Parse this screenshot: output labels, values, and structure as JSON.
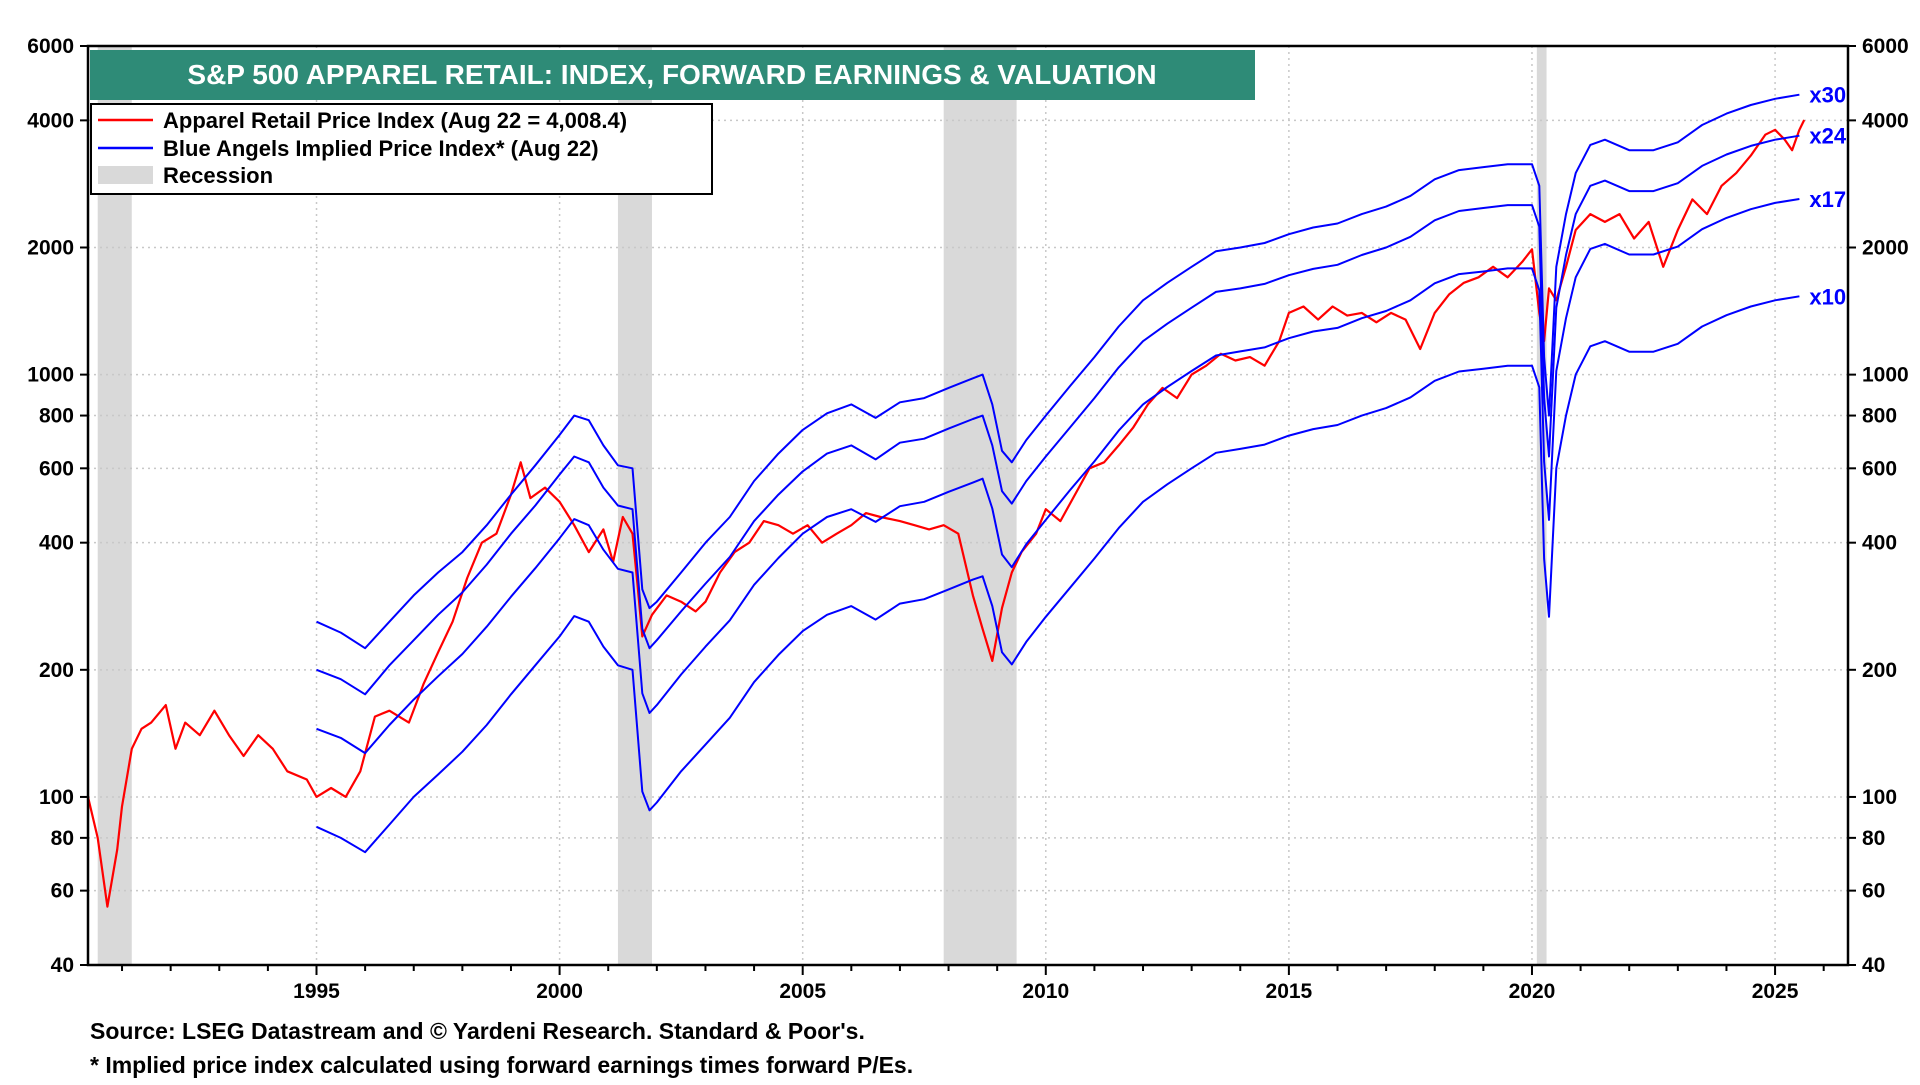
{
  "colors": {
    "price": "#ff0000",
    "implied": "#0000ff",
    "title_bg": "#2e8b77",
    "recession": "#d9d9d9",
    "grid": "#c8c8c8"
  },
  "chart_data": {
    "type": "line",
    "title": "S&P 500 APPAREL RETAIL: INDEX, FORWARD EARNINGS & VALUATION",
    "y_scale": "log",
    "ylim": [
      40,
      6000
    ],
    "xlim": [
      1990.3,
      2026.5
    ],
    "y_ticks": [
      40,
      60,
      80,
      100,
      200,
      400,
      600,
      800,
      1000,
      2000,
      4000,
      6000
    ],
    "y_tick_labels": [
      "40",
      "60",
      "80",
      "100",
      "200",
      "400",
      "600",
      "800",
      "1000",
      "2000",
      "4000",
      "6000"
    ],
    "x_ticks": [
      1995,
      2000,
      2005,
      2010,
      2015,
      2020,
      2025
    ],
    "x_tick_labels": [
      "1995",
      "2000",
      "2005",
      "2010",
      "2015",
      "2020",
      "2025"
    ],
    "legend": {
      "placement": "top-left",
      "entries": [
        "Apparel Retail Price Index (Aug 22 = 4,008.4)",
        "Blue Angels Implied Price Index* (Aug 22)",
        "Recession"
      ]
    },
    "recessions": [
      [
        1990.5,
        1991.2
      ],
      [
        2001.2,
        2001.9
      ],
      [
        2007.9,
        2009.4
      ],
      [
        2020.1,
        2020.3
      ]
    ],
    "series": [
      {
        "name": "Apparel Retail Price Index",
        "color": "#ff0000",
        "x": [
          1990.3,
          1990.5,
          1990.7,
          1990.9,
          1991.0,
          1991.2,
          1991.4,
          1991.6,
          1991.9,
          1992.1,
          1992.3,
          1992.6,
          1992.9,
          1993.2,
          1993.5,
          1993.8,
          1994.1,
          1994.4,
          1994.8,
          1995.0,
          1995.3,
          1995.6,
          1995.9,
          1996.2,
          1996.5,
          1996.9,
          1997.2,
          1997.5,
          1997.8,
          1998.1,
          1998.4,
          1998.7,
          1999.0,
          1999.2,
          1999.4,
          1999.7,
          2000.0,
          2000.3,
          2000.6,
          2000.9,
          2001.1,
          2001.3,
          2001.5,
          2001.6,
          2001.7,
          2001.9,
          2002.2,
          2002.5,
          2002.8,
          2003.0,
          2003.3,
          2003.6,
          2003.9,
          2004.2,
          2004.5,
          2004.8,
          2005.1,
          2005.4,
          2005.7,
          2006.0,
          2006.3,
          2006.6,
          2007.0,
          2007.3,
          2007.6,
          2007.9,
          2008.2,
          2008.5,
          2008.7,
          2008.9,
          2009.1,
          2009.3,
          2009.5,
          2009.8,
          2010.0,
          2010.3,
          2010.6,
          2010.9,
          2011.2,
          2011.5,
          2011.8,
          2012.1,
          2012.4,
          2012.7,
          2013.0,
          2013.3,
          2013.6,
          2013.9,
          2014.2,
          2014.5,
          2014.8,
          2015.0,
          2015.3,
          2015.6,
          2015.9,
          2016.2,
          2016.5,
          2016.8,
          2017.1,
          2017.4,
          2017.7,
          2018.0,
          2018.3,
          2018.6,
          2018.9,
          2019.2,
          2019.5,
          2019.8,
          2020.0,
          2020.15,
          2020.25,
          2020.35,
          2020.5,
          2020.7,
          2020.9,
          2021.2,
          2021.5,
          2021.8,
          2022.1,
          2022.4,
          2022.7,
          2023.0,
          2023.3,
          2023.6,
          2023.9,
          2024.2,
          2024.5,
          2024.8,
          2025.0,
          2025.2,
          2025.35,
          2025.5,
          2025.6
        ],
        "values": [
          100,
          80,
          55,
          75,
          95,
          130,
          145,
          150,
          165,
          130,
          150,
          140,
          160,
          140,
          125,
          140,
          130,
          115,
          110,
          100,
          105,
          100,
          115,
          155,
          160,
          150,
          185,
          220,
          260,
          330,
          400,
          420,
          520,
          620,
          510,
          540,
          500,
          440,
          380,
          430,
          360,
          460,
          420,
          320,
          240,
          270,
          300,
          290,
          275,
          290,
          340,
          380,
          400,
          450,
          440,
          420,
          440,
          400,
          420,
          440,
          470,
          460,
          450,
          440,
          430,
          440,
          420,
          300,
          250,
          210,
          280,
          340,
          380,
          420,
          480,
          450,
          520,
          600,
          620,
          680,
          750,
          850,
          930,
          880,
          1000,
          1050,
          1120,
          1080,
          1100,
          1050,
          1200,
          1400,
          1450,
          1350,
          1450,
          1380,
          1400,
          1330,
          1400,
          1350,
          1150,
          1400,
          1550,
          1650,
          1700,
          1800,
          1700,
          1850,
          1980,
          1400,
          1200,
          1600,
          1500,
          1800,
          2200,
          2400,
          2300,
          2400,
          2100,
          2300,
          1800,
          2200,
          2600,
          2400,
          2800,
          3000,
          3300,
          3700,
          3800,
          3600,
          3400,
          3800,
          4008.4
        ]
      },
      {
        "name": "Blue Angels Implied Price Index x30",
        "color": "#0000ff",
        "label": "x30",
        "x": [
          1995.0,
          1995.5,
          1996.0,
          1996.5,
          1997.0,
          1997.5,
          1998.0,
          1998.5,
          1999.0,
          1999.5,
          2000.0,
          2000.3,
          2000.6,
          2000.9,
          2001.2,
          2001.5,
          2001.7,
          2001.85,
          2002.0,
          2002.5,
          2003.0,
          2003.5,
          2004.0,
          2004.5,
          2005.0,
          2005.5,
          2006.0,
          2006.5,
          2007.0,
          2007.5,
          2008.0,
          2008.5,
          2008.7,
          2008.9,
          2009.1,
          2009.3,
          2009.6,
          2010.0,
          2010.5,
          2011.0,
          2011.5,
          2012.0,
          2012.5,
          2013.0,
          2013.5,
          2014.0,
          2014.5,
          2015.0,
          2015.5,
          2016.0,
          2016.5,
          2017.0,
          2017.5,
          2018.0,
          2018.5,
          2019.0,
          2019.5,
          2020.0,
          2020.15,
          2020.25,
          2020.35,
          2020.5,
          2020.7,
          2020.9,
          2021.2,
          2021.5,
          2022.0,
          2022.5,
          2023.0,
          2023.5,
          2024.0,
          2024.5,
          2025.0,
          2025.5
        ],
        "values": [
          260,
          245,
          225,
          260,
          300,
          340,
          380,
          440,
          520,
          610,
          720,
          800,
          780,
          680,
          610,
          600,
          310,
          280,
          290,
          340,
          400,
          460,
          560,
          650,
          740,
          810,
          850,
          790,
          860,
          880,
          930,
          980,
          1000,
          850,
          660,
          620,
          700,
          800,
          940,
          1100,
          1300,
          1500,
          1650,
          1800,
          1960,
          2000,
          2050,
          2150,
          2230,
          2280,
          2400,
          2500,
          2650,
          2900,
          3050,
          3100,
          3150,
          3150,
          2800,
          1100,
          800,
          1800,
          2400,
          3000,
          3500,
          3600,
          3400,
          3400,
          3550,
          3900,
          4150,
          4350,
          4500,
          4600
        ]
      },
      {
        "name": "Blue Angels Implied Price Index x24",
        "color": "#0000ff",
        "label": "x24",
        "x": [
          1995.0,
          1995.5,
          1996.0,
          1996.5,
          1997.0,
          1997.5,
          1998.0,
          1998.5,
          1999.0,
          1999.5,
          2000.0,
          2000.3,
          2000.6,
          2000.9,
          2001.2,
          2001.5,
          2001.7,
          2001.85,
          2002.0,
          2002.5,
          2003.0,
          2003.5,
          2004.0,
          2004.5,
          2005.0,
          2005.5,
          2006.0,
          2006.5,
          2007.0,
          2007.5,
          2008.0,
          2008.5,
          2008.7,
          2008.9,
          2009.1,
          2009.3,
          2009.6,
          2010.0,
          2010.5,
          2011.0,
          2011.5,
          2012.0,
          2012.5,
          2013.0,
          2013.5,
          2014.0,
          2014.5,
          2015.0,
          2015.5,
          2016.0,
          2016.5,
          2017.0,
          2017.5,
          2018.0,
          2018.5,
          2019.0,
          2019.5,
          2020.0,
          2020.15,
          2020.25,
          2020.35,
          2020.5,
          2020.7,
          2020.9,
          2021.2,
          2021.5,
          2022.0,
          2022.5,
          2023.0,
          2023.5,
          2024.0,
          2024.5,
          2025.0,
          2025.5
        ],
        "values": [
          200,
          190,
          175,
          205,
          235,
          270,
          305,
          355,
          420,
          490,
          580,
          640,
          620,
          540,
          490,
          480,
          250,
          225,
          235,
          275,
          320,
          370,
          450,
          520,
          590,
          650,
          680,
          630,
          690,
          705,
          745,
          785,
          800,
          680,
          530,
          495,
          560,
          640,
          750,
          880,
          1040,
          1200,
          1320,
          1440,
          1570,
          1600,
          1640,
          1720,
          1780,
          1820,
          1920,
          2000,
          2120,
          2320,
          2440,
          2480,
          2520,
          2520,
          2240,
          880,
          640,
          1440,
          1920,
          2400,
          2800,
          2880,
          2720,
          2720,
          2840,
          3120,
          3320,
          3480,
          3600,
          3680
        ]
      },
      {
        "name": "Blue Angels Implied Price Index x17",
        "color": "#0000ff",
        "label": "x17",
        "x": [
          1995.0,
          1995.5,
          1996.0,
          1996.5,
          1997.0,
          1997.5,
          1998.0,
          1998.5,
          1999.0,
          1999.5,
          2000.0,
          2000.3,
          2000.6,
          2000.9,
          2001.2,
          2001.5,
          2001.7,
          2001.85,
          2002.0,
          2002.5,
          2003.0,
          2003.5,
          2004.0,
          2004.5,
          2005.0,
          2005.5,
          2006.0,
          2006.5,
          2007.0,
          2007.5,
          2008.0,
          2008.5,
          2008.7,
          2008.9,
          2009.1,
          2009.3,
          2009.6,
          2010.0,
          2010.5,
          2011.0,
          2011.5,
          2012.0,
          2012.5,
          2013.0,
          2013.5,
          2014.0,
          2014.5,
          2015.0,
          2015.5,
          2016.0,
          2016.5,
          2017.0,
          2017.5,
          2018.0,
          2018.5,
          2019.0,
          2019.5,
          2020.0,
          2020.15,
          2020.25,
          2020.35,
          2020.5,
          2020.7,
          2020.9,
          2021.2,
          2021.5,
          2022.0,
          2022.5,
          2023.0,
          2023.5,
          2024.0,
          2024.5,
          2025.0,
          2025.5
        ],
        "values": [
          145,
          138,
          127,
          148,
          170,
          193,
          218,
          253,
          298,
          348,
          410,
          455,
          440,
          385,
          347,
          340,
          176,
          158,
          165,
          195,
          227,
          262,
          318,
          368,
          420,
          460,
          480,
          448,
          488,
          500,
          528,
          555,
          567,
          482,
          375,
          350,
          397,
          453,
          533,
          623,
          737,
          850,
          935,
          1020,
          1110,
          1135,
          1160,
          1220,
          1265,
          1290,
          1360,
          1415,
          1500,
          1645,
          1730,
          1755,
          1785,
          1785,
          1585,
          623,
          453,
          1020,
          1360,
          1700,
          1985,
          2040,
          1925,
          1925,
          2010,
          2210,
          2350,
          2465,
          2550,
          2605
        ]
      },
      {
        "name": "Blue Angels Implied Price Index x10",
        "color": "#0000ff",
        "label": "x10",
        "x": [
          1995.0,
          1995.5,
          1996.0,
          1996.5,
          1997.0,
          1997.5,
          1998.0,
          1998.5,
          1999.0,
          1999.5,
          2000.0,
          2000.3,
          2000.6,
          2000.9,
          2001.2,
          2001.5,
          2001.7,
          2001.85,
          2002.0,
          2002.5,
          2003.0,
          2003.5,
          2004.0,
          2004.5,
          2005.0,
          2005.5,
          2006.0,
          2006.5,
          2007.0,
          2007.5,
          2008.0,
          2008.5,
          2008.7,
          2008.9,
          2009.1,
          2009.3,
          2009.6,
          2010.0,
          2010.5,
          2011.0,
          2011.5,
          2012.0,
          2012.5,
          2013.0,
          2013.5,
          2014.0,
          2014.5,
          2015.0,
          2015.5,
          2016.0,
          2016.5,
          2017.0,
          2017.5,
          2018.0,
          2018.5,
          2019.0,
          2019.5,
          2020.0,
          2020.15,
          2020.25,
          2020.35,
          2020.5,
          2020.7,
          2020.9,
          2021.2,
          2021.5,
          2022.0,
          2022.5,
          2023.0,
          2023.5,
          2024.0,
          2024.5,
          2025.0,
          2025.5
        ],
        "values": [
          85,
          80,
          74,
          86,
          100,
          113,
          128,
          148,
          175,
          205,
          240,
          268,
          260,
          227,
          205,
          200,
          103,
          93,
          97,
          115,
          133,
          154,
          187,
          217,
          247,
          270,
          283,
          263,
          287,
          294,
          310,
          327,
          333,
          283,
          220,
          206,
          233,
          267,
          313,
          367,
          433,
          500,
          550,
          600,
          653,
          667,
          683,
          717,
          743,
          760,
          800,
          833,
          883,
          967,
          1017,
          1033,
          1050,
          1050,
          933,
          367,
          267,
          600,
          800,
          1000,
          1167,
          1200,
          1133,
          1133,
          1183,
          1300,
          1383,
          1450,
          1500,
          1533
        ]
      }
    ]
  },
  "footer": {
    "source": "Source: LSEG Datastream and © Yardeni Research. Standard & Poor's.",
    "note": "* Implied price index calculated using forward earnings times forward P/Es."
  }
}
